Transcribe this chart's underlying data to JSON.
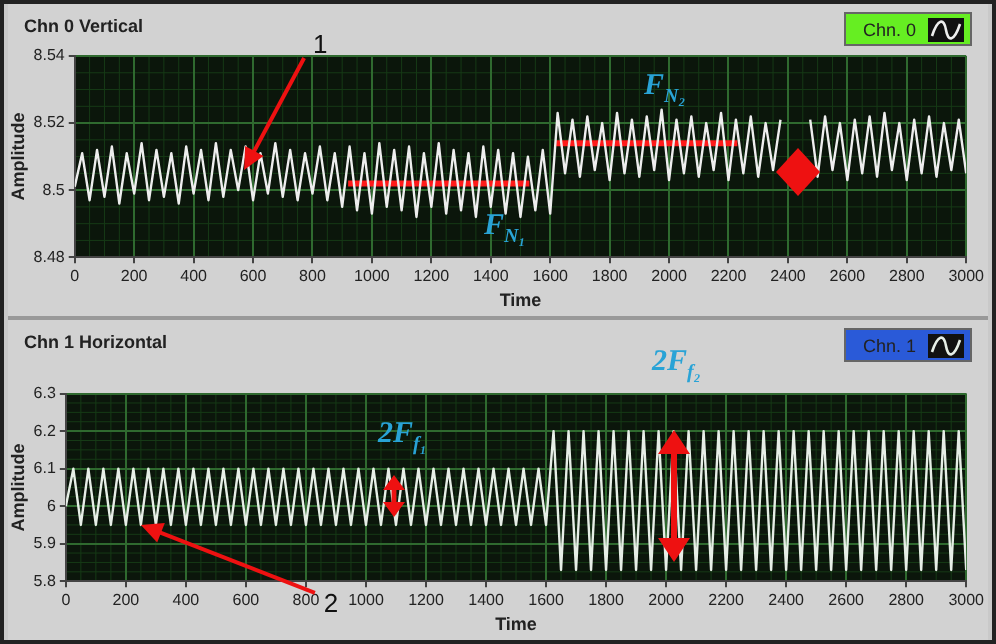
{
  "chart_data": [
    {
      "type": "line",
      "title": "Chn 0 Vertical",
      "xlabel": "Time",
      "ylabel": "Amplitude",
      "xlim": [
        0,
        3000
      ],
      "xticks": [
        0,
        200,
        400,
        600,
        800,
        1000,
        1200,
        1400,
        1600,
        1800,
        2000,
        2200,
        2400,
        2600,
        2800,
        3000
      ],
      "ylim": [
        8.48,
        8.54
      ],
      "yticks": [
        8.48,
        8.5,
        8.52,
        8.54
      ],
      "grid": true,
      "legend": "top right",
      "marker": "none",
      "line_style": "solid",
      "x": [
        0,
        25,
        50,
        75,
        100,
        125,
        150,
        175,
        200,
        225,
        250,
        275,
        300,
        325,
        350,
        375,
        400,
        425,
        450,
        475,
        500,
        525,
        550,
        575,
        600,
        625,
        650,
        675,
        700,
        725,
        750,
        775,
        800,
        825,
        850,
        875,
        900,
        925,
        950,
        975,
        1000,
        1025,
        1050,
        1075,
        1100,
        1125,
        1150,
        1175,
        1200,
        1225,
        1250,
        1275,
        1300,
        1325,
        1350,
        1375,
        1400,
        1425,
        1450,
        1475,
        1500,
        1525,
        1550,
        1575,
        1600,
        1625,
        1650,
        1675,
        1700,
        1725,
        1750,
        1775,
        1800,
        1825,
        1850,
        1875,
        1900,
        1925,
        1950,
        1975,
        2000,
        2025,
        2050,
        2075,
        2100,
        2125,
        2150,
        2175,
        2200,
        2225,
        2250,
        2275,
        2300,
        2325,
        2350,
        2375,
        2400,
        2425,
        2450,
        2475,
        2500,
        2525,
        2550,
        2575,
        2600,
        2625,
        2650,
        2675,
        2700,
        2725,
        2750,
        2775,
        2800,
        2825,
        2850,
        2875,
        2900,
        2925,
        2950,
        2975,
        3000
      ],
      "series": [
        {
          "name": "Chn. 0",
          "color": "#eeeeee",
          "values": [
            8.501,
            8.511,
            8.497,
            8.512,
            8.498,
            8.513,
            8.496,
            8.511,
            8.499,
            8.514,
            8.497,
            8.512,
            8.498,
            8.511,
            8.496,
            8.513,
            8.499,
            8.512,
            8.497,
            8.514,
            8.498,
            8.512,
            8.5,
            8.513,
            8.497,
            8.511,
            8.499,
            8.514,
            8.498,
            8.512,
            8.497,
            8.511,
            8.499,
            8.513,
            8.497,
            8.511,
            8.495,
            8.513,
            8.494,
            8.511,
            8.493,
            8.514,
            8.495,
            8.512,
            8.494,
            8.513,
            8.492,
            8.511,
            8.495,
            8.514,
            8.493,
            8.512,
            8.494,
            8.511,
            8.492,
            8.513,
            8.495,
            8.512,
            8.493,
            8.511,
            8.492,
            8.51,
            8.494,
            8.512,
            8.493,
            8.523,
            8.505,
            8.521,
            8.504,
            8.522,
            8.506,
            8.52,
            8.503,
            8.523,
            8.505,
            8.521,
            8.504,
            8.522,
            8.506,
            8.524,
            8.503,
            8.521,
            8.505,
            8.522,
            8.504,
            8.52,
            8.506,
            8.523,
            8.503,
            8.521,
            8.505,
            8.522,
            8.504,
            8.52,
            8.506,
            8.521,
            null,
            null,
            null,
            8.521,
            8.504,
            8.522,
            8.506,
            8.52,
            8.503,
            8.521,
            8.505,
            8.522,
            8.504,
            8.523,
            8.506,
            8.52,
            8.503,
            8.521,
            8.505,
            8.522,
            8.504,
            8.52,
            8.506,
            8.521,
            8.505
          ]
        },
        {
          "type": "line",
          "color": "#ff1a1a",
          "x": [
            920,
            1530
          ],
          "values": [
            8.502,
            8.502
          ]
        },
        {
          "type": "line",
          "color": "#ff1a1a",
          "x": [
            1620,
            2230
          ],
          "values": [
            8.514,
            8.514
          ]
        }
      ],
      "annotations": [
        {
          "text": "1",
          "x": 570,
          "y": 8.506
        },
        "F$_{N₁}$",
        "F$_{N₂}$"
      ]
    },
    {
      "type": "line",
      "title": "Chn 1 Horizontal",
      "xlabel": "Time",
      "ylabel": "Amplitude",
      "xlim": [
        0,
        3000
      ],
      "xticks": [
        0,
        200,
        400,
        600,
        800,
        1000,
        1200,
        1400,
        1600,
        1800,
        2000,
        2200,
        2400,
        2600,
        2800,
        3000
      ],
      "ylim": [
        5.8,
        6.3
      ],
      "yticks": [
        5.8,
        5.9,
        6,
        6.1,
        6.2,
        6.3
      ],
      "grid": true,
      "legend": "top right",
      "marker": "none",
      "line_style": "solid",
      "x": [
        0,
        25,
        50,
        75,
        100,
        125,
        150,
        175,
        200,
        225,
        250,
        275,
        300,
        325,
        350,
        375,
        400,
        425,
        450,
        475,
        500,
        525,
        550,
        575,
        600,
        625,
        650,
        675,
        700,
        725,
        750,
        775,
        800,
        825,
        850,
        875,
        900,
        925,
        950,
        975,
        1000,
        1025,
        1050,
        1075,
        1100,
        1125,
        1150,
        1175,
        1200,
        1225,
        1250,
        1275,
        1300,
        1325,
        1350,
        1375,
        1400,
        1425,
        1450,
        1475,
        1500,
        1525,
        1550,
        1575,
        1600,
        1625,
        1650,
        1675,
        1700,
        1725,
        1750,
        1775,
        1800,
        1825,
        1850,
        1875,
        1900,
        1925,
        1950,
        1975,
        2000,
        2025,
        2050,
        2075,
        2100,
        2125,
        2150,
        2175,
        2200,
        2225,
        2250,
        2275,
        2300,
        2325,
        2350,
        2375,
        2400,
        2425,
        2450,
        2475,
        2500,
        2525,
        2550,
        2575,
        2600,
        2625,
        2650,
        2675,
        2700,
        2725,
        2750,
        2775,
        2800,
        2825,
        2850,
        2875,
        2900,
        2925,
        2950,
        2975,
        3000
      ],
      "series": [
        {
          "name": "Chn. 1",
          "color": "#e6eee6",
          "values": [
            6.0,
            6.1,
            5.95,
            6.1,
            5.95,
            6.1,
            5.95,
            6.1,
            5.95,
            6.1,
            5.95,
            6.1,
            5.95,
            6.1,
            5.95,
            6.1,
            5.95,
            6.1,
            5.95,
            6.1,
            5.95,
            6.1,
            5.95,
            6.1,
            5.95,
            6.1,
            5.95,
            6.1,
            5.95,
            6.1,
            5.95,
            6.1,
            5.95,
            6.1,
            5.95,
            6.1,
            5.95,
            6.1,
            5.95,
            6.1,
            5.95,
            6.1,
            5.95,
            6.1,
            5.95,
            6.1,
            5.95,
            6.1,
            5.95,
            6.1,
            5.95,
            6.1,
            5.95,
            6.1,
            5.95,
            6.1,
            5.95,
            6.1,
            5.95,
            6.1,
            5.95,
            6.1,
            5.95,
            6.1,
            5.95,
            6.2,
            5.83,
            6.2,
            5.83,
            6.2,
            5.83,
            6.2,
            5.83,
            6.2,
            5.83,
            6.2,
            5.83,
            6.2,
            5.83,
            6.2,
            5.83,
            6.2,
            5.83,
            6.2,
            5.83,
            6.2,
            5.83,
            6.2,
            5.83,
            6.2,
            5.83,
            6.2,
            5.83,
            6.2,
            5.83,
            6.2,
            5.83,
            6.2,
            5.83,
            6.2,
            5.83,
            6.2,
            5.83,
            6.2,
            5.83,
            6.2,
            5.83,
            6.2,
            5.83,
            6.2,
            5.83,
            6.2,
            5.83,
            6.2,
            5.83,
            6.2,
            5.83,
            6.2,
            5.83,
            6.2,
            5.83
          ]
        }
      ],
      "annotations": [
        {
          "text": "2",
          "x": 250,
          "y": 5.95
        },
        "2F$_{f₁}$",
        "2F$_{f₂}$"
      ]
    }
  ]
}
